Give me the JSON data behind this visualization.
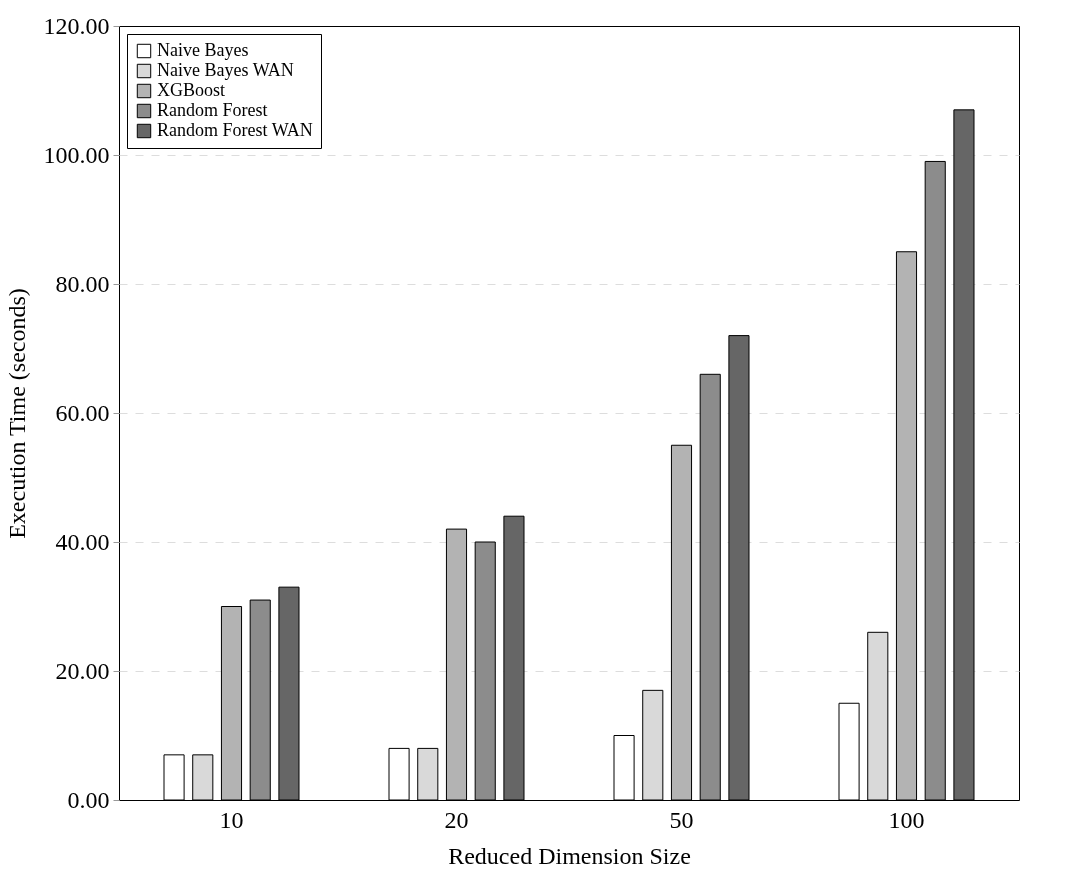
{
  "chart_data": {
    "type": "bar",
    "xlabel": "Reduced Dimension Size",
    "ylabel": "Execution Time (seconds)",
    "categories": [
      "10",
      "20",
      "50",
      "100"
    ],
    "series": [
      {
        "name": "Naive Bayes",
        "color": "#ffffff",
        "values": [
          7,
          8,
          10,
          15
        ]
      },
      {
        "name": "Naive Bayes WAN",
        "color": "#d9d9d9",
        "values": [
          7,
          8,
          17,
          26
        ]
      },
      {
        "name": "XGBoost",
        "color": "#b3b3b3",
        "values": [
          30,
          42,
          55,
          85
        ]
      },
      {
        "name": "Random Forest",
        "color": "#8c8c8c",
        "values": [
          31,
          40,
          66,
          99
        ]
      },
      {
        "name": "Random Forest WAN",
        "color": "#666666",
        "values": [
          33,
          44,
          72,
          107
        ]
      }
    ],
    "ylim": [
      0,
      120
    ],
    "yticks": [
      {
        "value": 0,
        "label": "0.00"
      },
      {
        "value": 20,
        "label": "20.00"
      },
      {
        "value": 40,
        "label": "40.00"
      },
      {
        "value": 60,
        "label": "60.00"
      },
      {
        "value": 80,
        "label": "80.00"
      },
      {
        "value": 100,
        "label": "100.00"
      },
      {
        "value": 120,
        "label": "120.00"
      }
    ],
    "grid": "y",
    "legend": "top left"
  }
}
